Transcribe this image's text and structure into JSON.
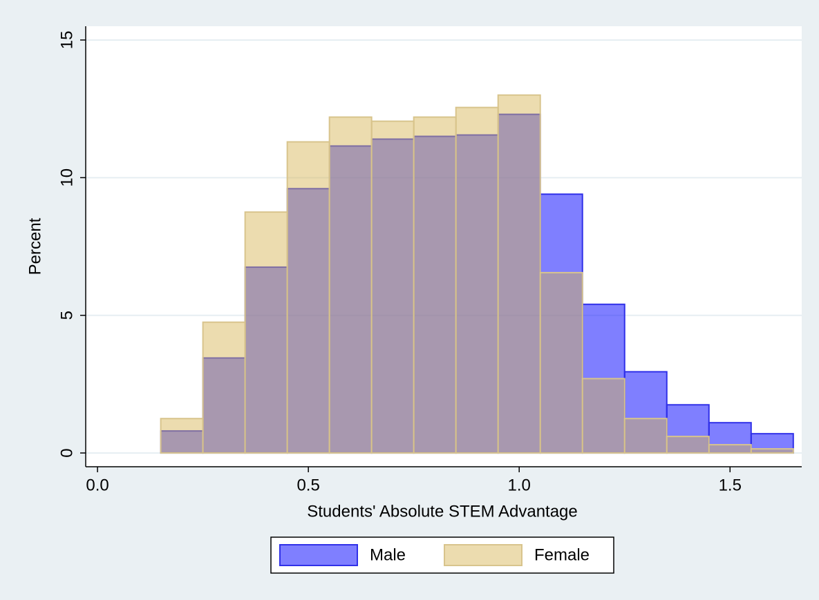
{
  "chart_data": {
    "type": "histogram",
    "xlabel": "Students' Absolute STEM Advantage",
    "ylabel": "Percent",
    "bins": [
      0.15,
      0.25,
      0.35,
      0.45,
      0.55,
      0.65,
      0.75,
      0.85,
      0.95,
      1.05,
      1.15,
      1.25,
      1.35,
      1.45,
      1.55,
      1.65
    ],
    "series": [
      {
        "name": "Male",
        "color": "rgba(0,0,255,0.5)",
        "edge": "#3030e8",
        "values": [
          0.8,
          3.45,
          6.75,
          9.6,
          11.15,
          11.4,
          11.5,
          11.55,
          12.3,
          9.4,
          5.4,
          2.95,
          1.75,
          1.1,
          0.7
        ]
      },
      {
        "name": "Female",
        "color": "rgba(214,180,85,0.47)",
        "edge": "#d8c48c",
        "values": [
          1.25,
          4.75,
          8.75,
          11.3,
          12.2,
          12.05,
          12.2,
          12.55,
          13.0,
          6.55,
          2.7,
          1.25,
          0.6,
          0.3,
          0.15
        ]
      }
    ],
    "xlim": [
      -0.028,
      1.67
    ],
    "ylim": [
      -0.5,
      15.5
    ],
    "xticks": [
      {
        "value": 0,
        "label": "0.0"
      },
      {
        "value": 0.5,
        "label": "0.5"
      },
      {
        "value": 1,
        "label": "1.0"
      },
      {
        "value": 1.5,
        "label": "1.5"
      }
    ],
    "yticks": [
      0,
      5,
      10,
      15
    ],
    "grid": true,
    "legend": "bottom"
  }
}
